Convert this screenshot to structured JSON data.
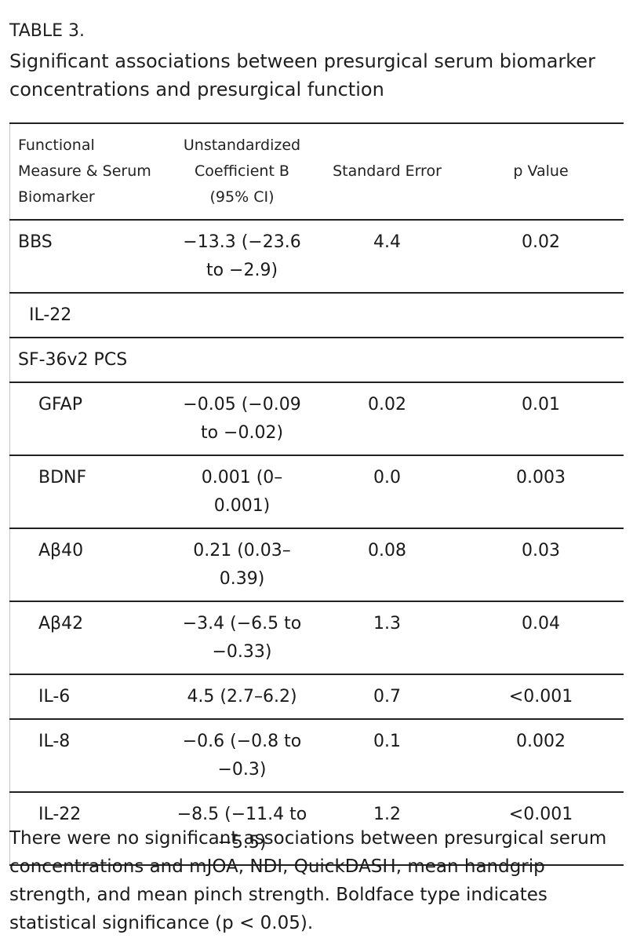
{
  "caption": {
    "label": "TABLE 3.",
    "title": "Significant associations between presurgical serum biomarker concentrations and presurgical function"
  },
  "table": {
    "headers": {
      "col1": "Functional Measure & Serum Biomarker",
      "col2": "Unstandardized Coefficient B (95% CI)",
      "col3": "Standard Error",
      "col4": "p Value"
    },
    "rows": [
      {
        "measure": "BBS",
        "coef": "−13.3 (−23.6 to −2.9)",
        "se": "4.4",
        "p": "0.02"
      },
      {
        "measure": "IL-22",
        "coef": "",
        "se": "",
        "p": ""
      },
      {
        "measure": "SF-36v2 PCS",
        "coef": "",
        "se": "",
        "p": ""
      },
      {
        "measure": "GFAP",
        "coef": "−0.05 (−0.09 to −0.02)",
        "se": "0.02",
        "p": "0.01"
      },
      {
        "measure": "BDNF",
        "coef": "0.001 (0–0.001)",
        "se": "0.0",
        "p": "0.003"
      },
      {
        "measure": "Aβ40",
        "coef": "0.21 (0.03–0.39)",
        "se": "0.08",
        "p": "0.03"
      },
      {
        "measure": "Aβ42",
        "coef": "−3.4 (−6.5 to −0.33)",
        "se": "1.3",
        "p": "0.04"
      },
      {
        "measure": "IL-6",
        "coef": "4.5 (2.7–6.2)",
        "se": "0.7",
        "p": "<0.001"
      },
      {
        "measure": "IL-8",
        "coef": "−0.6 (−0.8 to −0.3)",
        "se": "0.1",
        "p": "0.002"
      },
      {
        "measure": "IL-22",
        "coef": "−8.5 (−11.4 to −5.5)",
        "se": "1.2",
        "p": "<0.001"
      }
    ]
  },
  "footnote": "There were no significant associations between presurgical serum concentrations and mJOA, NDI, QuickDASH, mean handgrip strength, and mean pinch strength. Boldface type indicates statistical significance (p < 0.05)."
}
